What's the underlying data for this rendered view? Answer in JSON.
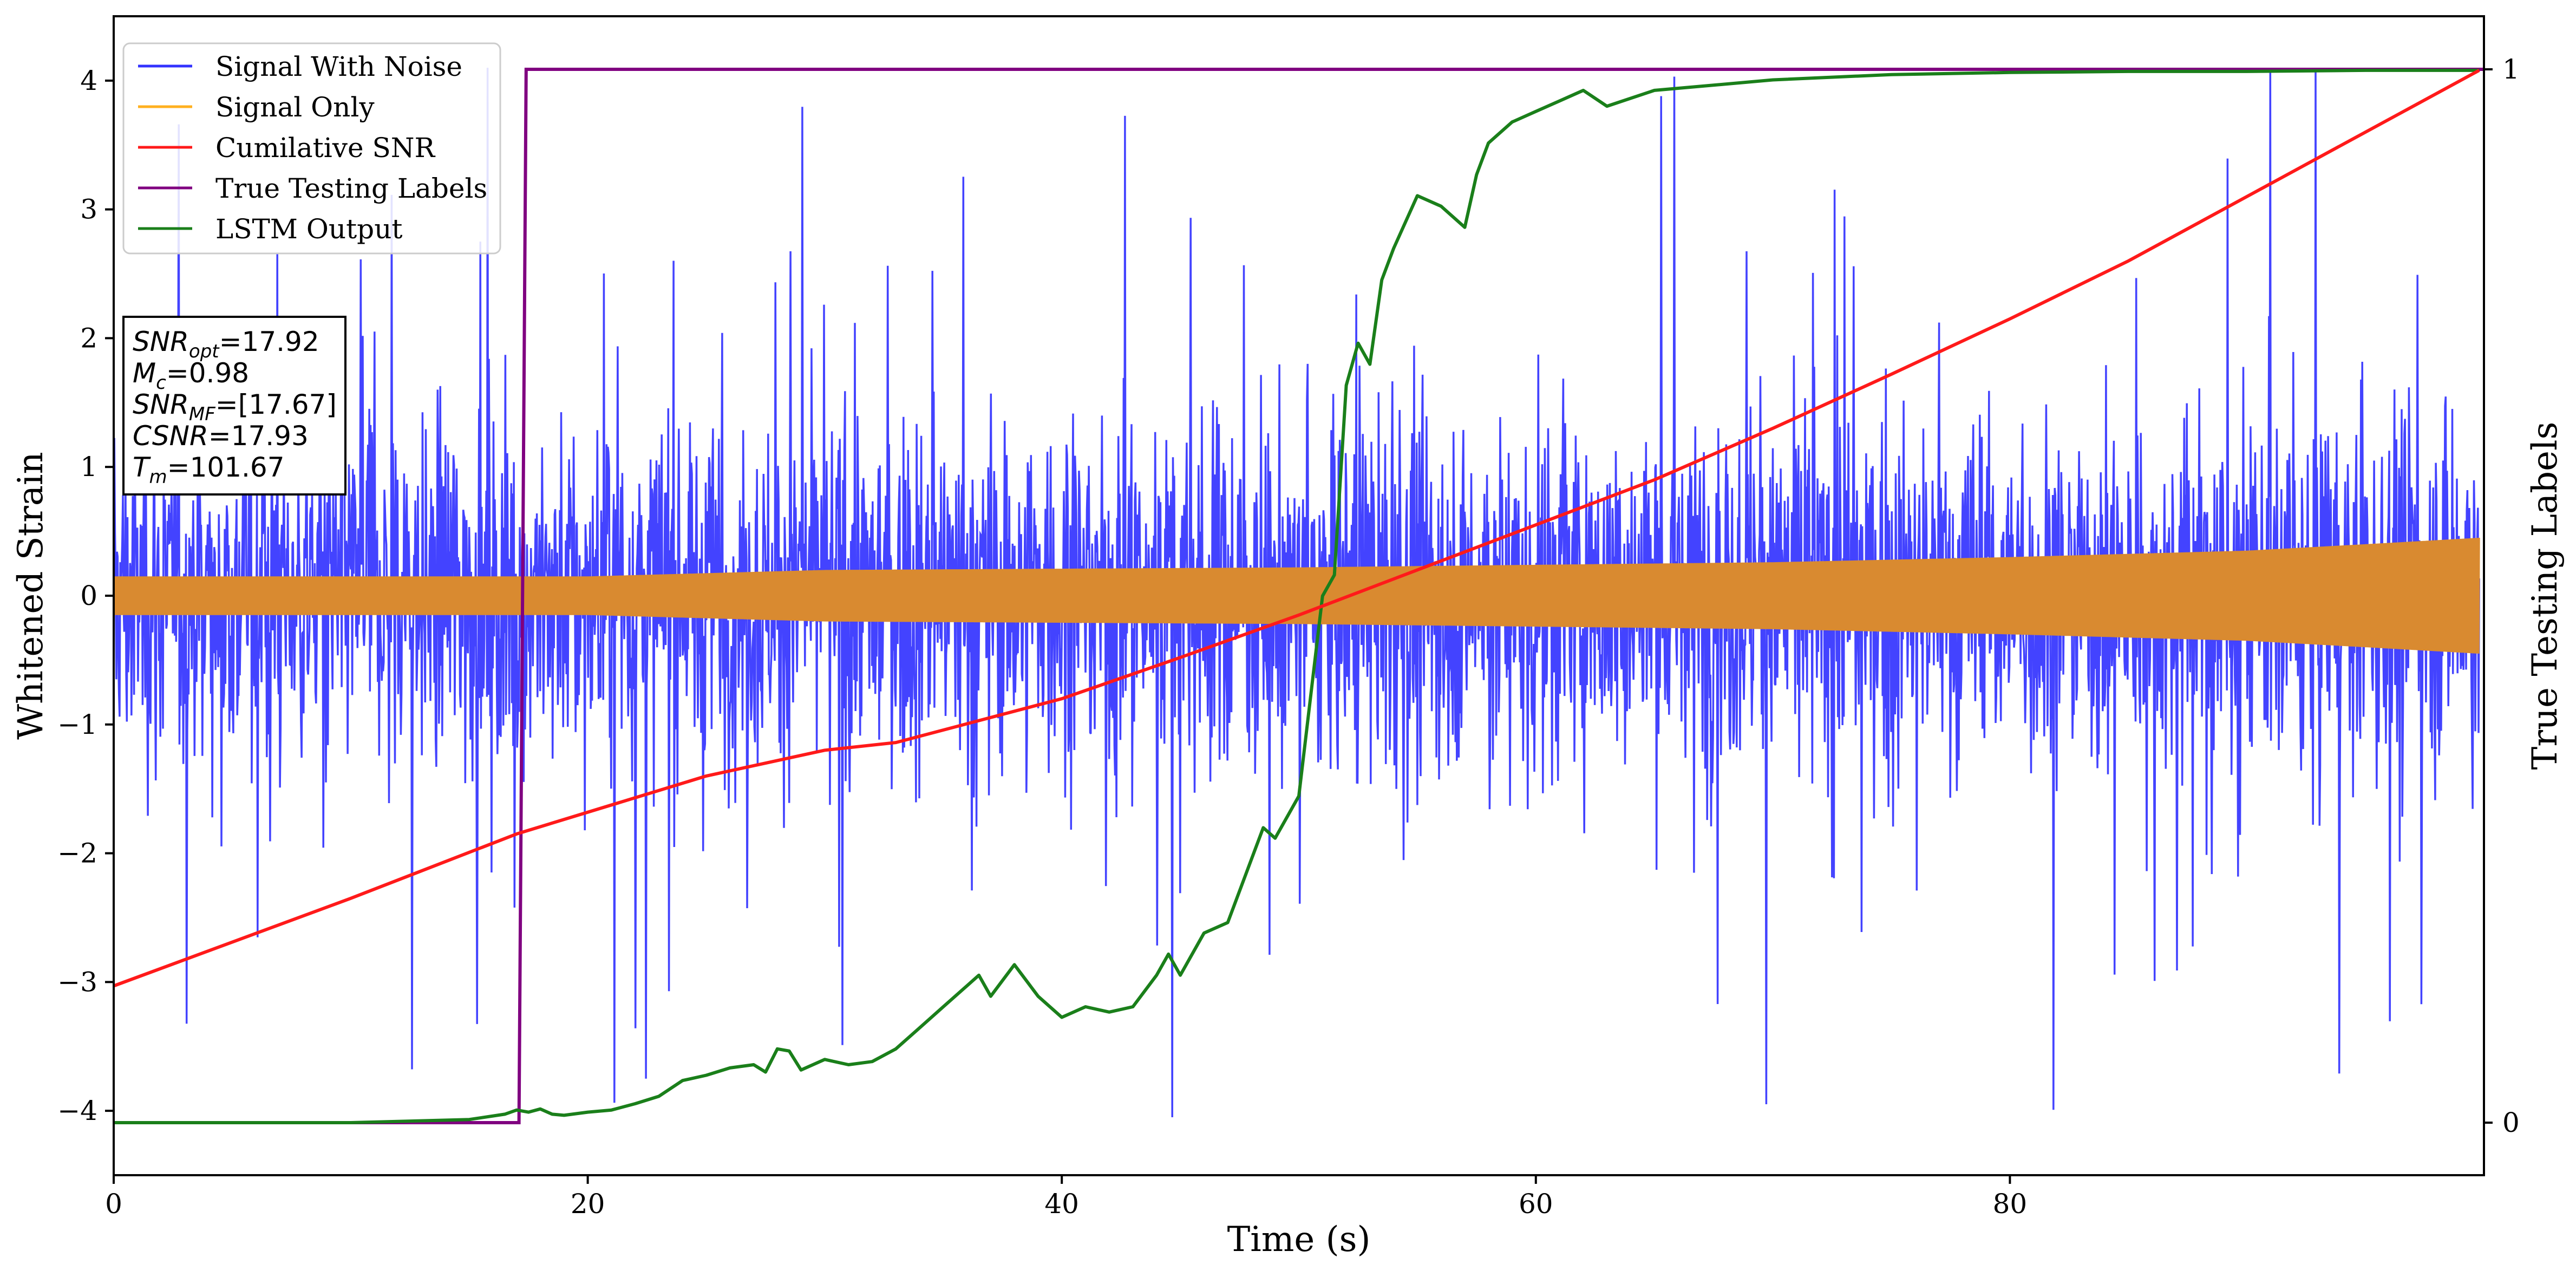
{
  "chart_data": {
    "type": "line",
    "xlabel": "Time (s)",
    "ylabel": "Whitened Strain",
    "y2label": "True Testing Labels",
    "xlim": [
      0,
      100
    ],
    "ylim": [
      -4.5,
      4.5
    ],
    "y2lim": [
      -0.05,
      1.0
    ],
    "x_ticks": [
      "0",
      "20",
      "40",
      "60",
      "80"
    ],
    "x_tick_values": [
      0,
      20,
      40,
      60,
      80
    ],
    "y_ticks": [
      "−4",
      "−3",
      "−2",
      "−1",
      "0",
      "1",
      "2",
      "3",
      "4"
    ],
    "y_tick_values": [
      -4,
      -3,
      -2,
      -1,
      0,
      1,
      2,
      3,
      4
    ],
    "y2_ticks": [
      "0",
      "1"
    ],
    "y2_tick_values": [
      0,
      1
    ],
    "grid": false,
    "legend_position": "top-left",
    "colors": {
      "noise": "#3333ff",
      "signal": "#d98a30",
      "signal_legend": "#ffb020",
      "csnr": "#ff1a1a",
      "labels": "#800080",
      "lstm": "#1a7f1a"
    },
    "legend": [
      {
        "name": "Signal With Noise",
        "color": "#3333ff"
      },
      {
        "name": "Signal Only",
        "color": "#ffb020"
      },
      {
        "name": "Cumilative SNR",
        "color": "#ff1a1a"
      },
      {
        "name": "True Testing Labels",
        "color": "#800080"
      },
      {
        "name": "LSTM Output",
        "color": "#1a7f1a"
      }
    ],
    "annotation": {
      "line1_main": "SNR",
      "line1_sub": "opt",
      "line1_val": "=17.92",
      "line2_main": "M",
      "line2_sub": "c",
      "line2_val": "=0.98",
      "line3_main": "SNR",
      "line3_sub": "MF",
      "line3_val": "=[17.67]",
      "line4_main": "CSNR",
      "line4_val": "=17.93",
      "line5_main": "T",
      "line5_sub": "m",
      "line5_val": "=101.67"
    },
    "series": [
      {
        "name": "Signal With Noise",
        "axis": "left",
        "style": "dense noise, amplitude about ±4",
        "peak_max": 4.1,
        "peak_min": -4.05
      },
      {
        "name": "Signal Only",
        "axis": "left",
        "style": "dense oscillation envelope",
        "x": [
          0,
          10,
          20,
          30,
          40,
          50,
          60,
          70,
          80,
          90,
          95,
          99.8
        ],
        "envelope": [
          0.15,
          0.15,
          0.15,
          0.2,
          0.21,
          0.22,
          0.24,
          0.26,
          0.3,
          0.35,
          0.4,
          0.45
        ]
      },
      {
        "name": "Cumilative SNR",
        "axis": "left",
        "x": [
          0,
          10,
          17,
          25,
          30,
          33,
          40,
          45,
          50,
          55,
          60,
          65,
          70,
          75,
          80,
          85,
          90,
          95,
          99.8
        ],
        "y": [
          -3.03,
          -2.35,
          -1.85,
          -1.4,
          -1.2,
          -1.14,
          -0.8,
          -0.48,
          -0.15,
          0.2,
          0.55,
          0.9,
          1.3,
          1.72,
          2.15,
          2.6,
          3.1,
          3.6,
          4.08
        ]
      },
      {
        "name": "True Testing Labels",
        "axis": "right",
        "x": [
          0,
          17.1,
          17.4,
          100
        ],
        "y": [
          0,
          0,
          1,
          1
        ]
      },
      {
        "name": "LSTM Output",
        "axis": "right",
        "x": [
          0,
          10,
          15,
          16.5,
          17,
          17.5,
          18,
          18.5,
          19,
          20,
          21,
          22,
          23,
          24,
          25,
          26,
          27,
          27.5,
          28,
          28.5,
          29,
          30,
          31,
          32,
          33,
          34,
          34.5,
          35,
          36,
          36.5,
          37,
          38,
          39,
          40,
          41,
          42,
          43,
          44,
          44.5,
          45,
          46,
          47,
          48,
          48.5,
          49,
          50,
          51,
          51.5,
          52,
          52.5,
          53,
          53.5,
          54,
          55,
          56,
          57,
          57.5,
          58,
          59,
          60,
          61,
          62,
          63,
          65,
          70,
          75,
          80,
          85,
          90,
          95,
          99.8
        ],
        "y": [
          0,
          0,
          0.003,
          0.008,
          0.012,
          0.01,
          0.013,
          0.008,
          0.007,
          0.01,
          0.012,
          0.018,
          0.025,
          0.04,
          0.045,
          0.052,
          0.055,
          0.048,
          0.07,
          0.068,
          0.05,
          0.06,
          0.055,
          0.058,
          0.07,
          0.09,
          0.1,
          0.11,
          0.13,
          0.14,
          0.12,
          0.15,
          0.12,
          0.1,
          0.11,
          0.105,
          0.11,
          0.14,
          0.16,
          0.14,
          0.18,
          0.19,
          0.25,
          0.28,
          0.27,
          0.31,
          0.5,
          0.52,
          0.7,
          0.74,
          0.72,
          0.8,
          0.83,
          0.88,
          0.87,
          0.85,
          0.9,
          0.93,
          0.95,
          0.96,
          0.97,
          0.98,
          0.965,
          0.98,
          0.99,
          0.995,
          0.997,
          0.998,
          0.998,
          0.999,
          0.999
        ]
      }
    ]
  }
}
